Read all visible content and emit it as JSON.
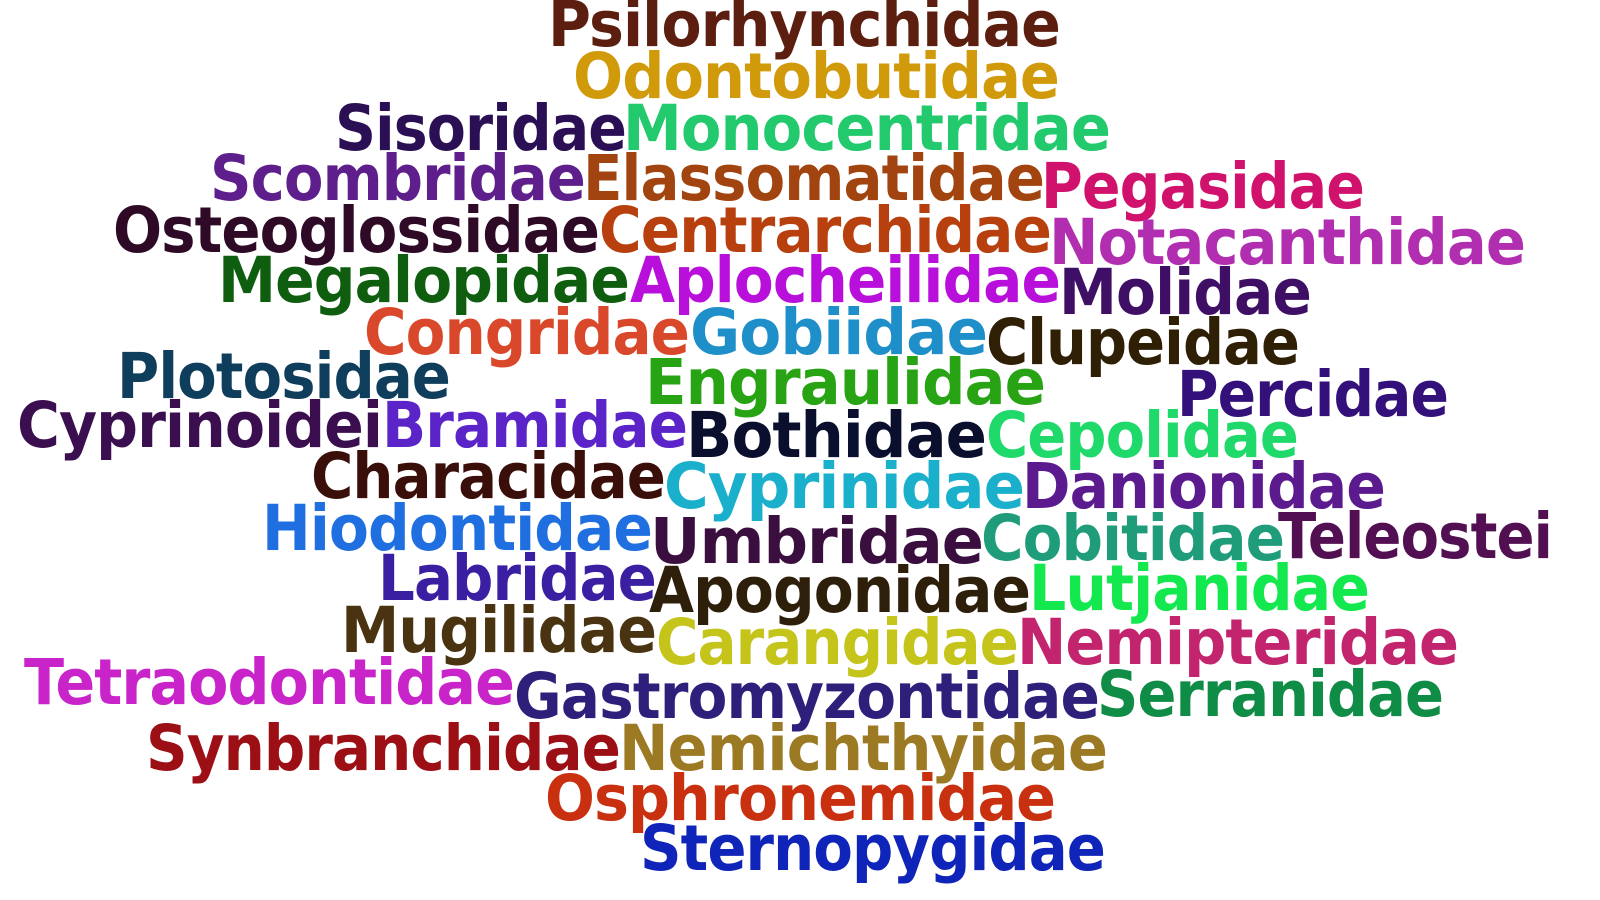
{
  "words": [
    {
      "text": "Psilorhynchidae",
      "color": "#5c1f0f"
    },
    {
      "text": "Odontobutidae",
      "color": "#d19a0a"
    },
    {
      "text": "Sisoridae",
      "color": "#2a0f55"
    },
    {
      "text": "Monocentridae",
      "color": "#22c96d"
    },
    {
      "text": "Scombridae",
      "color": "#5e1f8c"
    },
    {
      "text": "Elassomatidae",
      "color": "#a2440f"
    },
    {
      "text": "Pegasidae",
      "color": "#d1126c"
    },
    {
      "text": "Osteoglossidae",
      "color": "#2e0a26"
    },
    {
      "text": "Centrarchidae",
      "color": "#b8400f"
    },
    {
      "text": "Notacanthidae",
      "color": "#b22eb0"
    },
    {
      "text": "Megalopidae",
      "color": "#0f5e0f"
    },
    {
      "text": "Aplocheilidae",
      "color": "#b80fdb"
    },
    {
      "text": "Molidae",
      "color": "#3f0f66"
    },
    {
      "text": "Congridae",
      "color": "#d9482a"
    },
    {
      "text": "Gobiidae",
      "color": "#1f8fc9"
    },
    {
      "text": "Clupeidae",
      "color": "#2e1f05"
    },
    {
      "text": "Plotosidae",
      "color": "#0f3d5c"
    },
    {
      "text": "Engraulidae",
      "color": "#27a314"
    },
    {
      "text": "Percidae",
      "color": "#33107a"
    },
    {
      "text": "Cyprinoidei",
      "color": "#3b0f4f"
    },
    {
      "text": "Bramidae",
      "color": "#5a24c9"
    },
    {
      "text": "Bothidae",
      "color": "#0a0f2e"
    },
    {
      "text": "Cepolidae",
      "color": "#1fd96b"
    },
    {
      "text": "Characidae",
      "color": "#3a0f0a"
    },
    {
      "text": "Cyprinidae",
      "color": "#1ab0cc"
    },
    {
      "text": "Danionidae",
      "color": "#5c1a8f"
    },
    {
      "text": "Hiodontidae",
      "color": "#1f6fe0"
    },
    {
      "text": "Umbridae",
      "color": "#3a0f3f"
    },
    {
      "text": "Cobitidae",
      "color": "#1f9c7a"
    },
    {
      "text": "Teleostei",
      "color": "#520f52"
    },
    {
      "text": "Labridae",
      "color": "#3a1fa3"
    },
    {
      "text": "Apogonidae",
      "color": "#2e1f0a"
    },
    {
      "text": "Lutjanidae",
      "color": "#14e84f"
    },
    {
      "text": "Mugilidae",
      "color": "#4a3310"
    },
    {
      "text": "Carangidae",
      "color": "#c4c41a"
    },
    {
      "text": "Nemipteridae",
      "color": "#c2246e"
    },
    {
      "text": "Tetraodontidae",
      "color": "#c924c9"
    },
    {
      "text": "Gastromyzontidae",
      "color": "#2e1f7a"
    },
    {
      "text": "Serranidae",
      "color": "#0f8c45"
    },
    {
      "text": "Synbranchidae",
      "color": "#9c0f14"
    },
    {
      "text": "Nemichthyidae",
      "color": "#9c7a24"
    },
    {
      "text": "Osphronemidae",
      "color": "#c9300f"
    },
    {
      "text": "Sternopygidae",
      "color": "#0f24b8"
    }
  ]
}
